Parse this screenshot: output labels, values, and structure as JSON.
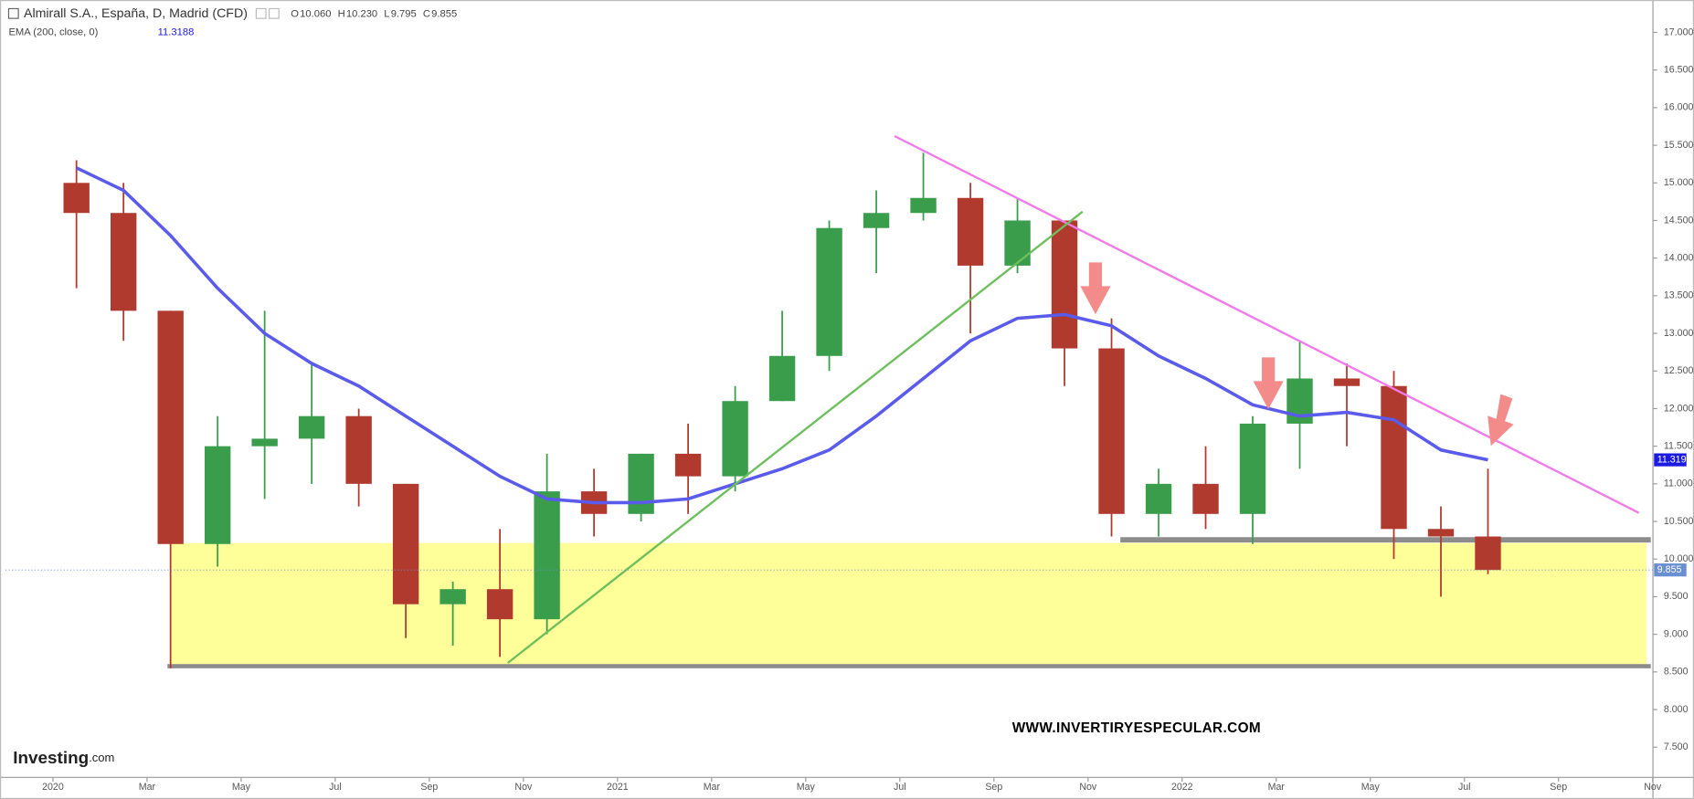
{
  "header": {
    "symbol": "Almirall S.A., España, D, Madrid (CFD)",
    "ohlc": [
      {
        "name": "O",
        "value": 10.06,
        "label": "10.060"
      },
      {
        "name": "H",
        "value": 10.23,
        "label": "10.230"
      },
      {
        "name": "L",
        "value": 9.795,
        "label": "9.795"
      },
      {
        "name": "C",
        "value": 9.855,
        "label": "9.855"
      }
    ],
    "indicator": "EMA (200, close, 0)",
    "indicator_value": 11.3188
  },
  "watermark": "WWW.INVERTIRYESPECULAR.COM",
  "logo": {
    "brand": "Investing",
    "suffix": ".com"
  },
  "chart_data": {
    "type": "candlestick",
    "x": [
      "2020-01",
      "2020-02",
      "2020-03",
      "2020-04",
      "2020-05",
      "2020-06",
      "2020-07",
      "2020-08",
      "2020-09",
      "2020-10",
      "2020-11",
      "2020-12",
      "2021-01",
      "2021-02",
      "2021-03",
      "2021-04",
      "2021-05",
      "2021-06",
      "2021-07",
      "2021-08",
      "2021-09",
      "2021-10",
      "2021-11",
      "2021-12",
      "2022-01",
      "2022-02",
      "2022-03",
      "2022-04",
      "2022-05",
      "2022-06",
      "2022-07"
    ],
    "open": [
      15.0,
      14.6,
      13.3,
      10.2,
      11.5,
      11.6,
      11.9,
      11.0,
      9.4,
      9.6,
      9.2,
      10.9,
      10.6,
      11.4,
      11.1,
      12.1,
      12.7,
      14.4,
      14.6,
      14.8,
      13.9,
      14.5,
      12.8,
      10.6,
      11.0,
      10.6,
      11.8,
      12.4,
      12.3,
      10.4,
      10.3
    ],
    "high": [
      15.3,
      15.0,
      13.3,
      11.9,
      13.3,
      12.6,
      12.0,
      11.0,
      9.7,
      10.4,
      11.4,
      11.2,
      11.4,
      11.8,
      12.3,
      13.3,
      14.5,
      14.9,
      15.4,
      15.0,
      14.8,
      14.5,
      13.2,
      11.2,
      11.5,
      11.9,
      12.9,
      12.6,
      12.5,
      10.7,
      11.2
    ],
    "low": [
      13.6,
      12.9,
      8.55,
      9.9,
      10.8,
      11.0,
      10.7,
      8.95,
      8.85,
      8.7,
      9.0,
      10.3,
      10.5,
      10.6,
      10.9,
      12.1,
      12.5,
      13.8,
      14.5,
      13.0,
      13.8,
      12.3,
      10.3,
      10.3,
      10.4,
      10.2,
      11.2,
      11.5,
      10.0,
      9.5,
      9.8
    ],
    "close": [
      14.6,
      13.3,
      10.2,
      11.5,
      11.6,
      11.9,
      11.0,
      9.4,
      9.6,
      9.2,
      10.9,
      10.6,
      11.4,
      11.1,
      12.1,
      12.7,
      14.4,
      14.6,
      14.8,
      13.9,
      14.5,
      12.8,
      10.6,
      11.0,
      10.6,
      11.8,
      12.4,
      12.3,
      10.4,
      10.3,
      9.855
    ],
    "up_color": "#3a9d4b",
    "down_color": "#b03a2e",
    "series": [
      {
        "name": "EMA (200, close, 0)",
        "color": "#5a5aeb",
        "values": [
          15.2,
          14.9,
          14.3,
          13.6,
          13.0,
          12.6,
          12.3,
          11.9,
          11.5,
          11.1,
          10.8,
          10.75,
          10.75,
          10.8,
          11.0,
          11.2,
          11.45,
          11.9,
          12.4,
          12.9,
          13.2,
          13.25,
          13.1,
          12.7,
          12.4,
          12.05,
          11.9,
          11.95,
          11.85,
          11.45,
          11.3188
        ]
      }
    ],
    "price_markers": [
      {
        "value": 11.3188,
        "label": "11.319",
        "color": "#1a1ae0"
      },
      {
        "value": 9.855,
        "label": "9.855",
        "color": "#6a8fd0"
      }
    ],
    "ylim": [
      7.1,
      17.4
    ],
    "yticks": [
      {
        "value": 7.5,
        "label": "7.500"
      },
      {
        "value": 8,
        "label": "8.000"
      },
      {
        "value": 8.5,
        "label": "8.500"
      },
      {
        "value": 9,
        "label": "9.000"
      },
      {
        "value": 9.5,
        "label": "9.500"
      },
      {
        "value": 10,
        "label": "10.000"
      },
      {
        "value": 10.5,
        "label": "10.500"
      },
      {
        "value": 11,
        "label": "11.000"
      },
      {
        "value": 11.5,
        "label": "11.500"
      },
      {
        "value": 12,
        "label": "12.000"
      },
      {
        "value": 12.5,
        "label": "12.500"
      },
      {
        "value": 13,
        "label": "13.000"
      },
      {
        "value": 13.5,
        "label": "13.500"
      },
      {
        "value": 14,
        "label": "14.000"
      },
      {
        "value": 14.5,
        "label": "14.500"
      },
      {
        "value": 15,
        "label": "15.000"
      },
      {
        "value": 15.5,
        "label": "15.500"
      },
      {
        "value": 16,
        "label": "16.000"
      },
      {
        "value": 16.5,
        "label": "16.500"
      },
      {
        "value": 17,
        "label": "17.000"
      }
    ],
    "xticks": [
      {
        "value": "2020-01",
        "label": "2020"
      },
      {
        "value": "2020-03",
        "label": "Mar"
      },
      {
        "value": "2020-05",
        "label": "May"
      },
      {
        "value": "2020-07",
        "label": "Jul"
      },
      {
        "value": "2020-09",
        "label": "Sep"
      },
      {
        "value": "2020-11",
        "label": "Nov"
      },
      {
        "value": "2021-01",
        "label": "2021"
      },
      {
        "value": "2021-03",
        "label": "Mar"
      },
      {
        "value": "2021-05",
        "label": "May"
      },
      {
        "value": "2021-07",
        "label": "Jul"
      },
      {
        "value": "2021-09",
        "label": "Sep"
      },
      {
        "value": "2021-11",
        "label": "Nov"
      },
      {
        "value": "2022-01",
        "label": "2022"
      },
      {
        "value": "2022-03",
        "label": "Mar"
      },
      {
        "value": "2022-05",
        "label": "May"
      },
      {
        "value": "2022-07",
        "label": "Jul"
      },
      {
        "value": "2022-09",
        "label": "Sep"
      },
      {
        "value": "2022-11",
        "label": "Nov"
      }
    ]
  }
}
